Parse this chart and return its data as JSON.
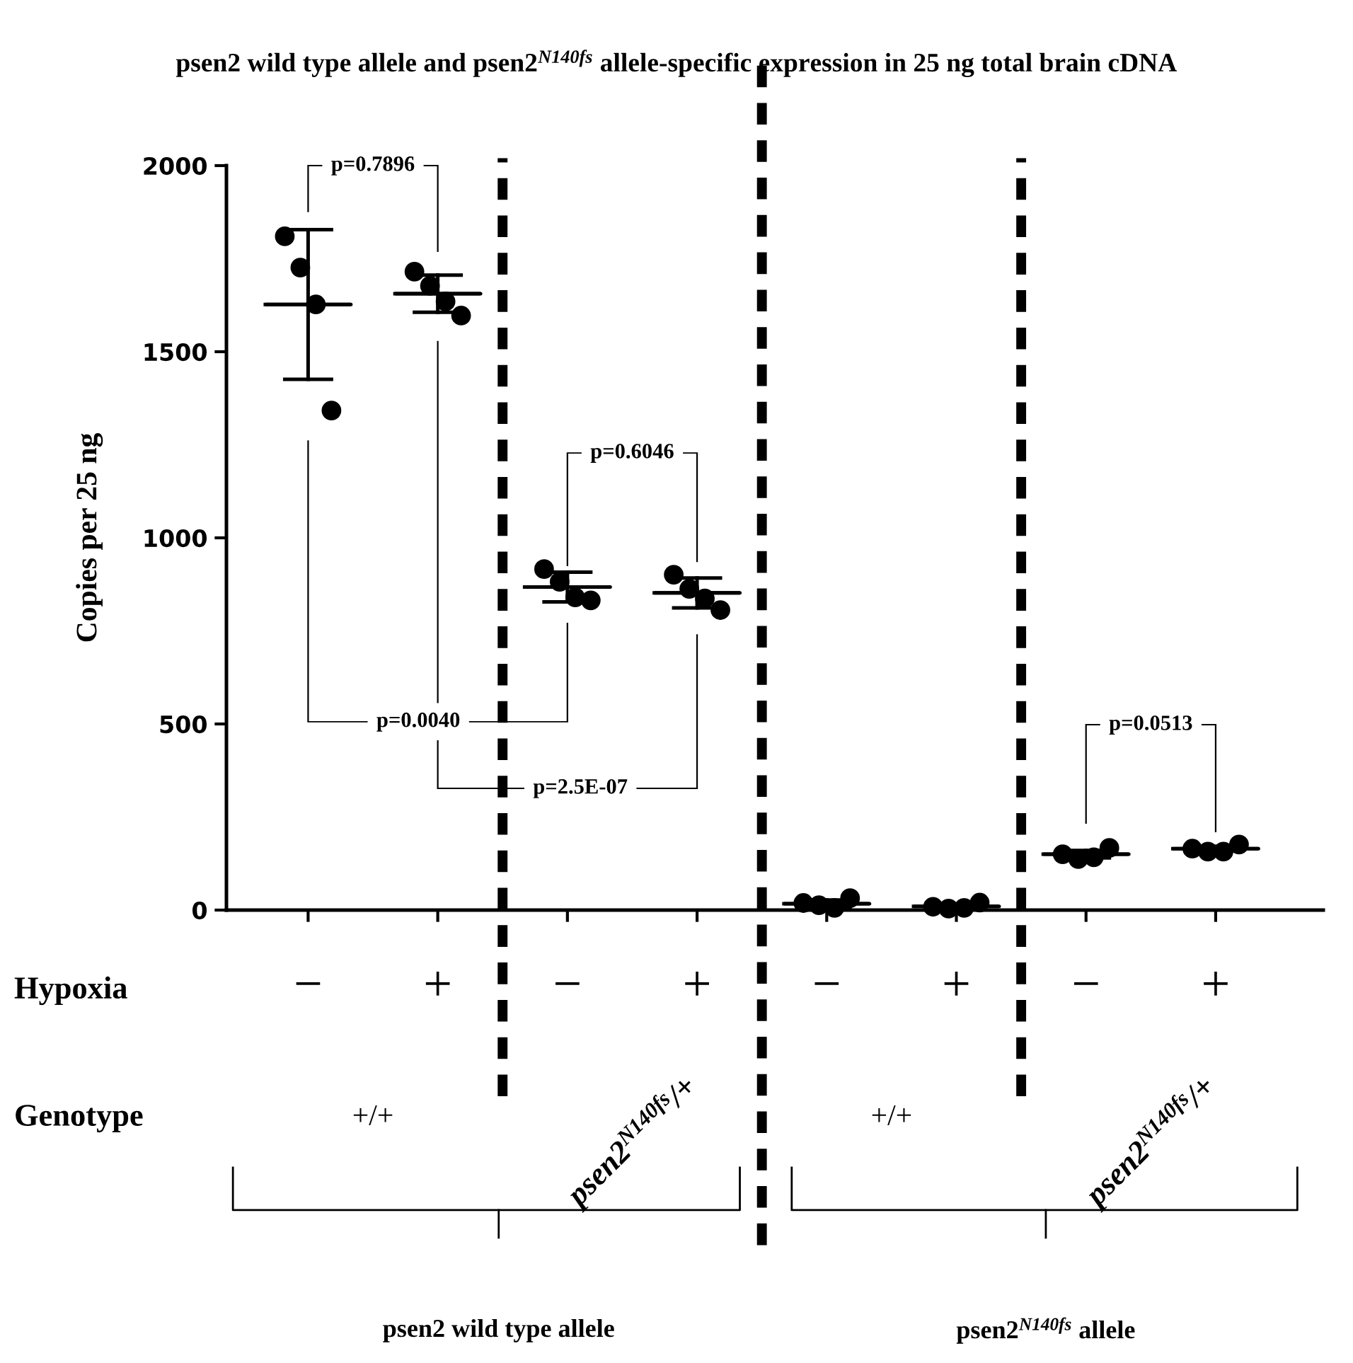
{
  "chart_data": {
    "type": "scatter",
    "title": "psen2 wild type allele and psen2$^{N140fs}$ allele-specific expression in 25 ng total brain cDNA",
    "ylabel": "Copies per 25 ng",
    "categories": [
      "−",
      "+",
      "−",
      "+",
      "−",
      "+",
      "−",
      "+"
    ],
    "ylim": [
      0,
      2000
    ],
    "yticks": [
      0,
      500,
      1000,
      1500,
      2000
    ],
    "grid": false,
    "legend": false,
    "marker": "circle",
    "series": [
      {
        "color": "#000000",
        "values": [
          1810,
          1715,
          916,
          901,
          19,
          9,
          150,
          165
        ]
      },
      {
        "color": "#000000",
        "values": [
          1726,
          1677,
          882,
          863,
          13,
          4,
          137,
          157
        ]
      },
      {
        "color": "#000000",
        "values": [
          1627,
          1635,
          840,
          837,
          6,
          6,
          142,
          157
        ]
      },
      {
        "color": "#000000",
        "values": [
          1342,
          1597,
          832,
          806,
          32,
          20,
          167,
          176
        ]
      },
      {
        "type": "box",
        "color": "#000000",
        "boxes": [
          {
            "low": 1426,
            "q1": 1627,
            "median": 1627,
            "q3": 1627,
            "high": 1828
          },
          {
            "low": 1606,
            "q1": 1656,
            "median": 1656,
            "q3": 1656,
            "high": 1706
          },
          {
            "low": 828,
            "q1": 868,
            "median": 868,
            "q3": 868,
            "high": 908
          },
          {
            "low": 812,
            "q1": 852,
            "median": 852,
            "q3": 852,
            "high": 892
          },
          {
            "low": 7,
            "q1": 17,
            "median": 17,
            "q3": 17,
            "high": 27
          },
          {
            "low": 4,
            "q1": 10,
            "median": 10,
            "q3": 10,
            "high": 16
          },
          {
            "low": 140,
            "q1": 150,
            "median": 150,
            "q3": 150,
            "high": 160
          },
          {
            "low": 159,
            "q1": 165,
            "median": 165,
            "q3": 165,
            "high": 171
          }
        ]
      }
    ],
    "annotations": [
      "p=0.7896",
      "p=0.6046",
      "p=0.0040",
      "p=2.5E-07",
      "p=0.0513",
      "Hypoxia",
      "Genotype",
      "+/+",
      "psen2$^{N140fs}$/+",
      "+/+",
      "psen2$^{N140fs}$/+",
      "psen2 wild type allele",
      "psen2$^{N140fs}$ allele"
    ]
  }
}
